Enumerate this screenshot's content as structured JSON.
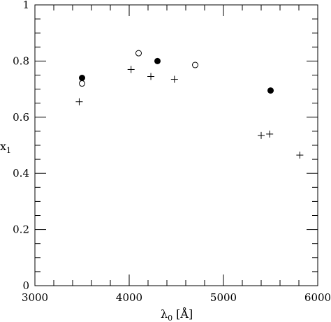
{
  "chart_data": {
    "type": "scatter",
    "title": "",
    "xlabel": "λ",
    "xlabel_sub": "0",
    "xlabel_unit": "[Å]",
    "ylabel": "x",
    "ylabel_sub": "1",
    "xlim": [
      3000,
      6000
    ],
    "ylim": [
      0,
      1
    ],
    "grid": false,
    "legend": "none",
    "x_ticks": [
      3000,
      4000,
      5000,
      6000
    ],
    "x_tick_labels": [
      "3000",
      "4000",
      "5000",
      "6000"
    ],
    "y_ticks": [
      0,
      0.2,
      0.4,
      0.6,
      0.8,
      1
    ],
    "y_tick_labels": [
      "0",
      "0.2",
      "0.4",
      "0.6",
      "0.8",
      "1"
    ],
    "series": [
      {
        "marker": "filled-circle",
        "points": [
          {
            "x": 3500,
            "y": 0.74
          },
          {
            "x": 4300,
            "y": 0.8
          },
          {
            "x": 5500,
            "y": 0.695
          }
        ]
      },
      {
        "marker": "open-circle",
        "points": [
          {
            "x": 3500,
            "y": 0.72
          },
          {
            "x": 4100,
            "y": 0.828
          },
          {
            "x": 4700,
            "y": 0.786
          }
        ]
      },
      {
        "marker": "plus",
        "points": [
          {
            "x": 3470,
            "y": 0.655
          },
          {
            "x": 4020,
            "y": 0.77
          },
          {
            "x": 4230,
            "y": 0.745
          },
          {
            "x": 4480,
            "y": 0.735
          },
          {
            "x": 5400,
            "y": 0.535
          },
          {
            "x": 5490,
            "y": 0.54
          },
          {
            "x": 5810,
            "y": 0.465
          }
        ]
      }
    ]
  }
}
